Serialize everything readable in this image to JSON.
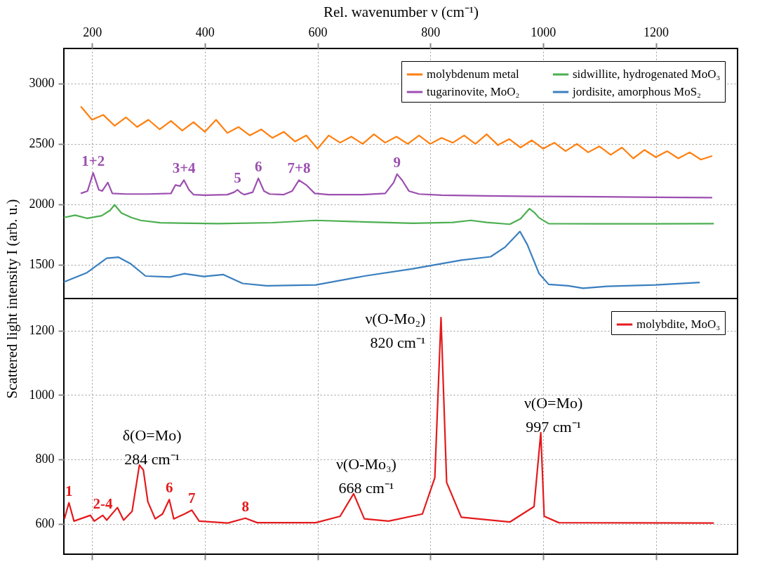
{
  "chart_data": [
    {
      "type": "line",
      "xlabel": "Rel. wavenumber ν (cm⁻¹)",
      "ylabel": "Scattered light intensity I (arb. u.)",
      "xlim": [
        150,
        1345
      ],
      "xticks": [
        200,
        400,
        600,
        800,
        1000,
        1200
      ],
      "ylim": [
        1220,
        3290
      ],
      "yticks": [
        1500,
        2000,
        2500,
        3000
      ],
      "grid": true,
      "legend": "top right",
      "line_style": "solid",
      "series": [
        {
          "name": "molybdenum metal",
          "color": "#ff7f0e",
          "x": [
            180,
            200,
            220,
            240,
            260,
            280,
            300,
            320,
            340,
            360,
            380,
            400,
            420,
            440,
            460,
            480,
            500,
            520,
            540,
            560,
            580,
            600,
            620,
            640,
            660,
            680,
            700,
            720,
            740,
            760,
            780,
            800,
            820,
            840,
            860,
            880,
            900,
            920,
            940,
            960,
            980,
            1000,
            1020,
            1040,
            1060,
            1080,
            1100,
            1120,
            1140,
            1160,
            1180,
            1200,
            1220,
            1240,
            1260,
            1280,
            1300
          ],
          "values": [
            2810,
            2700,
            2740,
            2650,
            2720,
            2640,
            2700,
            2620,
            2690,
            2610,
            2680,
            2600,
            2700,
            2590,
            2640,
            2570,
            2620,
            2550,
            2600,
            2520,
            2570,
            2460,
            2570,
            2510,
            2560,
            2500,
            2580,
            2510,
            2560,
            2500,
            2570,
            2500,
            2550,
            2510,
            2570,
            2500,
            2580,
            2490,
            2540,
            2470,
            2530,
            2460,
            2510,
            2440,
            2500,
            2430,
            2480,
            2410,
            2470,
            2380,
            2450,
            2390,
            2440,
            2380,
            2430,
            2370,
            2400
          ]
        },
        {
          "name": "tugarinovite, MoO₂",
          "color": "#9c4fb0",
          "x": [
            180,
            192,
            202,
            212,
            218,
            228,
            236,
            260,
            300,
            340,
            348,
            356,
            363,
            372,
            380,
            400,
            440,
            452,
            458,
            464,
            470,
            485,
            495,
            505,
            515,
            540,
            555,
            567,
            580,
            595,
            620,
            680,
            720,
            735,
            741,
            750,
            762,
            780,
            820,
            900,
            1000,
            1100,
            1200,
            1300
          ],
          "values": [
            2090,
            2110,
            2260,
            2120,
            2110,
            2180,
            2090,
            2085,
            2085,
            2090,
            2160,
            2150,
            2200,
            2120,
            2080,
            2075,
            2080,
            2100,
            2120,
            2095,
            2080,
            2100,
            2215,
            2110,
            2085,
            2080,
            2110,
            2200,
            2160,
            2090,
            2080,
            2080,
            2090,
            2180,
            2250,
            2200,
            2110,
            2085,
            2075,
            2070,
            2065,
            2062,
            2058,
            2055
          ]
        },
        {
          "name": "sidwillite, hydrogenated MoO₃",
          "color": "#4caf50",
          "x": [
            150,
            170,
            191,
            217,
            232,
            240,
            252,
            270,
            286,
            321,
            424,
            520,
            597,
            680,
            769,
            840,
            872,
            900,
            941,
            960,
            976,
            985,
            993,
            1010,
            1100,
            1200,
            1303
          ],
          "values": [
            1890,
            1910,
            1884,
            1905,
            1950,
            1996,
            1928,
            1890,
            1867,
            1847,
            1840,
            1848,
            1867,
            1855,
            1843,
            1850,
            1867,
            1850,
            1835,
            1880,
            1964,
            1930,
            1888,
            1840,
            1838,
            1838,
            1840
          ]
        },
        {
          "name": "jordisite, amorphous MoS₂",
          "color": "#3a7fbf",
          "x": [
            150,
            191,
            226,
            247,
            269,
            295,
            338,
            364,
            398,
            433,
            467,
            510,
            597,
            683,
            769,
            855,
            907,
            933,
            959,
            972,
            993,
            1010,
            1045,
            1071,
            1114,
            1200,
            1278
          ],
          "values": [
            1357,
            1434,
            1554,
            1562,
            1506,
            1406,
            1398,
            1426,
            1402,
            1418,
            1345,
            1325,
            1333,
            1406,
            1466,
            1538,
            1566,
            1647,
            1775,
            1667,
            1426,
            1337,
            1325,
            1305,
            1321,
            1333,
            1353
          ]
        }
      ],
      "annotations": [
        {
          "text": "1+2",
          "x": 202,
          "y": 2260
        },
        {
          "text": "3+4",
          "x": 363,
          "y": 2200
        },
        {
          "text": "5",
          "x": 458,
          "y": 2120
        },
        {
          "text": "6",
          "x": 495,
          "y": 2215
        },
        {
          "text": "7+8",
          "x": 567,
          "y": 2200
        },
        {
          "text": "9",
          "x": 741,
          "y": 2250
        }
      ]
    },
    {
      "type": "line",
      "xlim": [
        150,
        1345
      ],
      "xticks": [
        200,
        400,
        600,
        800,
        1000,
        1200
      ],
      "ylim": [
        505,
        1300
      ],
      "yticks": [
        600,
        800,
        1000,
        1200
      ],
      "grid": true,
      "legend": "top right",
      "line_style": "solid",
      "tick_labels": "y",
      "series": [
        {
          "name": "molybdite, MoO₃",
          "color": "#e41a1c",
          "x": [
            151,
            159,
            168,
            197,
            204,
            219,
            226,
            245,
            256,
            271,
            284,
            291,
            299,
            312,
            325,
            337,
            345,
            364,
            377,
            390,
            441,
            472,
            493,
            597,
            640,
            664,
            683,
            726,
            786,
            808,
            819,
            829,
            855,
            941,
            984,
            996,
            1002,
            1028,
            1303
          ],
          "values": [
            615,
            665,
            608,
            626,
            608,
            626,
            611,
            650,
            611,
            638,
            782,
            767,
            668,
            615,
            630,
            675,
            615,
            630,
            642,
            608,
            602,
            617,
            603,
            603,
            623,
            693,
            615,
            608,
            630,
            743,
            1241,
            728,
            620,
            605,
            653,
            883,
            623,
            603,
            602
          ]
        }
      ],
      "annotations": [
        {
          "text": "1",
          "x": 159,
          "y": 665
        },
        {
          "text": "2-4",
          "x": 219,
          "y": 626
        },
        {
          "text": "6",
          "x": 337,
          "y": 675
        },
        {
          "text": "7",
          "x": 377,
          "y": 642
        },
        {
          "text": "8",
          "x": 472,
          "y": 617
        },
        {
          "text": "δ(O=Mo)\n284 cm⁻¹",
          "x": 284,
          "y": 782
        },
        {
          "text": "ν(O-Mo₃)\n668 cm⁻¹",
          "x": 664,
          "y": 693
        },
        {
          "text": "ν(O-Mo₂)\n820 cm⁻¹",
          "x": 819,
          "y": 1241
        },
        {
          "text": "ν(O=Mo)\n997 cm⁻¹",
          "x": 996,
          "y": 883
        }
      ]
    }
  ]
}
